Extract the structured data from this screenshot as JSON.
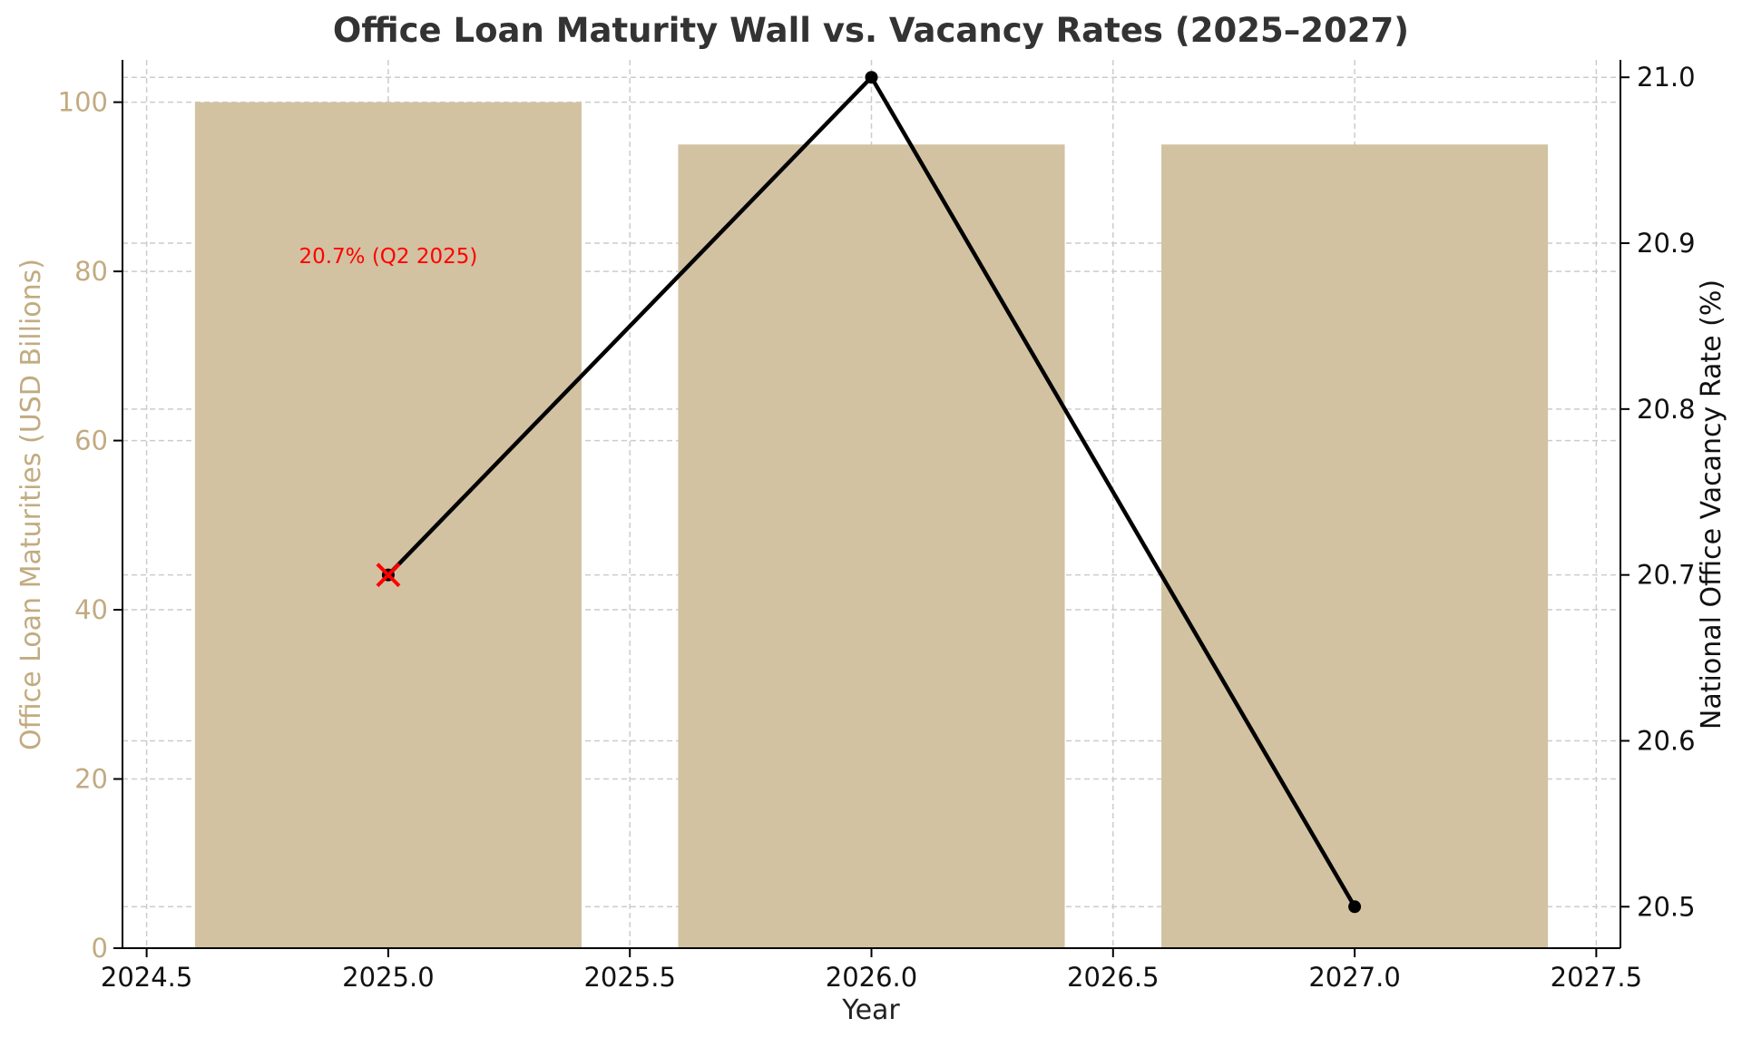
{
  "chart_data": {
    "type": "bar",
    "title": "Office Loan Maturity Wall vs. Vacancy Rates (2025–2027)",
    "xlabel": "Year",
    "ylabel": "Office Loan Maturities (USD Billions)",
    "y2label": "National Office Vacancy Rate (%)",
    "x": [
      2025.0,
      2026.0,
      2027.0
    ],
    "xlim": [
      2024.45,
      2027.55
    ],
    "ylim": [
      0,
      105
    ],
    "y2lim": [
      20.475,
      21.0105
    ],
    "x_ticks": [
      2024.5,
      2025.0,
      2025.5,
      2026.0,
      2026.5,
      2027.0,
      2027.5
    ],
    "x_tick_labels": [
      "2024.5",
      "2025.0",
      "2025.5",
      "2026.0",
      "2026.5",
      "2027.0",
      "2027.5"
    ],
    "y_ticks": [
      0,
      20,
      40,
      60,
      80,
      100
    ],
    "y_tick_labels": [
      "0",
      "20",
      "40",
      "60",
      "80",
      "100"
    ],
    "y2_ticks": [
      20.5,
      20.6,
      20.7,
      20.8,
      20.9,
      21.0
    ],
    "y2_tick_labels": [
      "20.5",
      "20.6",
      "20.7",
      "20.8",
      "20.9",
      "21.0"
    ],
    "bar_width": 0.8,
    "series": [
      {
        "type": "bar",
        "axis": "left",
        "values": [
          100,
          95,
          95
        ],
        "color": "#d2c2a1"
      },
      {
        "type": "line",
        "axis": "right",
        "values": [
          20.7,
          21.0,
          20.5
        ],
        "color": "#000000"
      }
    ],
    "annotations": [
      {
        "text": "20.7% (Q2 2025)",
        "x": 2025.0,
        "y": 81,
        "color": "#ff0000",
        "marker": "x",
        "marker_x": 2025.0,
        "marker_y2": 20.7
      }
    ],
    "grid": true,
    "colors": {
      "left_axis": "#c2ab81",
      "bar": "#d2c2a1",
      "line": "#000000",
      "annotation": "#ff0000",
      "grid": "#cccccc"
    }
  }
}
